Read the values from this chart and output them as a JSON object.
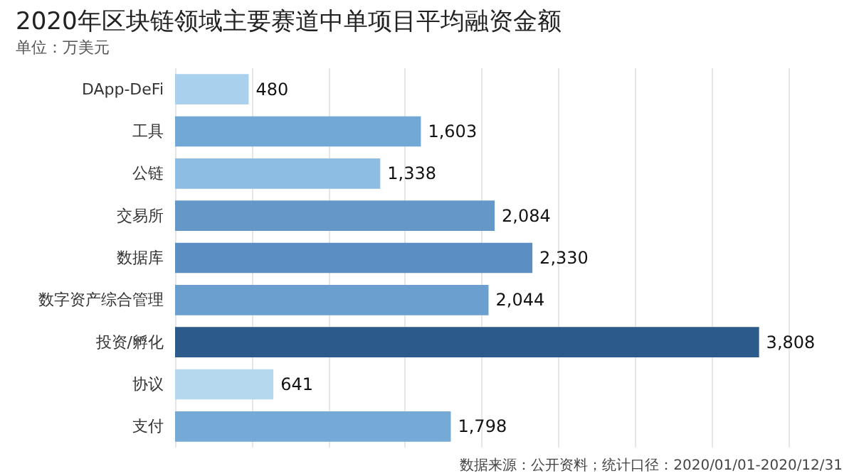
{
  "chart_data": {
    "type": "bar",
    "orientation": "horizontal",
    "title": "2020年区块链领域主要赛道中单项目平均融资金额",
    "subtitle": "单位：万美元",
    "categories": [
      "DApp-DeFi",
      "工具",
      "公链",
      "交易所",
      "数据库",
      "数字资产综合管理",
      "投资/孵化",
      "协议",
      "支付"
    ],
    "values": [
      480,
      1603,
      1338,
      2084,
      2330,
      2044,
      3808,
      641,
      1798
    ],
    "colors": [
      "#a9d0ec",
      "#72a8d6",
      "#8dbde3",
      "#6598c9",
      "#5b8ec2",
      "#6a9fcf",
      "#2c5a8a",
      "#b5d8ef",
      "#76aad6"
    ],
    "value_labels": [
      "480",
      "1,603",
      "1,338",
      "2,084",
      "2,330",
      "2,044",
      "3,808",
      "641",
      "1,798"
    ],
    "xlim": [
      0,
      4000
    ],
    "xticks": [
      {
        "value": 0,
        "label": null
      },
      {
        "value": 500,
        "label": null
      },
      {
        "value": 1000,
        "label": null
      },
      {
        "value": 1500,
        "label": null
      },
      {
        "value": 2000,
        "label": null
      },
      {
        "value": 2500,
        "label": null
      },
      {
        "value": 3000,
        "label": null
      },
      {
        "value": 3500,
        "label": null
      },
      {
        "value": 4000,
        "label": null
      }
    ],
    "tick_labels": "y",
    "grid": "x",
    "annotations": [
      "数据来源：公开资料；统计口径：2020/01/01-2020/12/31"
    ]
  }
}
